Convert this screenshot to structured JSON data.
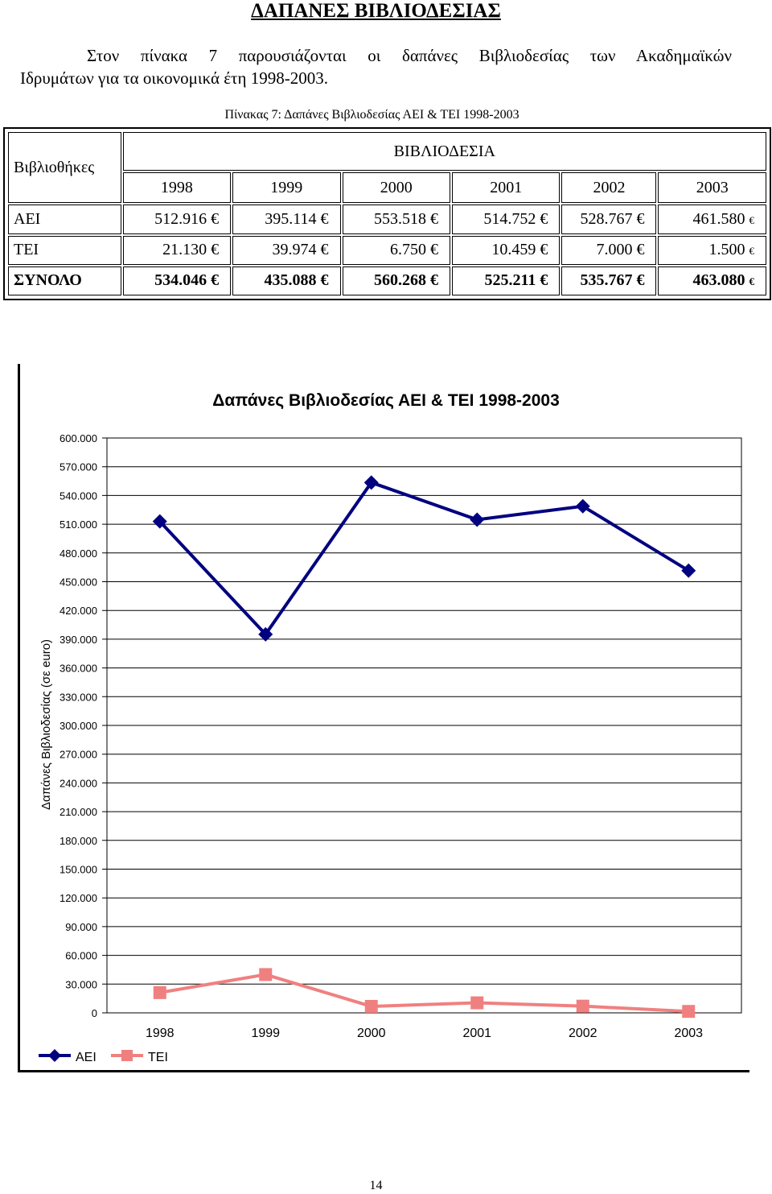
{
  "document": {
    "heading": "ΔΑΠΑΝΕΣ ΒΙΒΛΙΟΔΕΣΙΑΣ",
    "intro_line1": "Στον πίνακα 7 παρουσιάζονται οι δαπάνες Βιβλιοδεσίας των Ακαδημαϊκών",
    "intro_line2": "Ιδρυμάτων για τα οικονομικά έτη 1998-2003.",
    "table_caption": "Πίνακας 7: Δαπάνες Βιβλιοδεσίας ΑΕΙ & ΤΕΙ 1998-2003",
    "page_number": "14"
  },
  "table": {
    "row_header_title": "Βιβλιοθήκες",
    "group_header": "ΒΙΒΛΙΟΔΕΣΙΑ",
    "years": [
      "1998",
      "1999",
      "2000",
      "2001",
      "2002",
      "2003"
    ],
    "currency": "€",
    "rows": [
      {
        "label": "ΑΕΙ",
        "values": [
          "512.916 €",
          "395.114 €",
          "553.518 €",
          "514.752 €",
          "528.767 €",
          "461.580"
        ],
        "bold": false
      },
      {
        "label": "ΤΕΙ",
        "values": [
          "21.130 €",
          "39.974 €",
          "6.750 €",
          "10.459 €",
          "7.000 €",
          "1.500"
        ],
        "bold": false
      },
      {
        "label": "ΣΥΝΟΛΟ",
        "values": [
          "534.046 €",
          "435.088 €",
          "560.268 €",
          "525.211 €",
          "535.767 €",
          "463.080"
        ],
        "bold": true
      }
    ]
  },
  "chart_data": {
    "type": "line",
    "title": "Δαπάνες Βιβλιοδεσίας ΑΕΙ & ΤΕΙ 1998-2003",
    "ylabel": "Δαπάνες Βιβλιοδεσίας (σε euro)",
    "xlabel": "",
    "categories": [
      "1998",
      "1999",
      "2000",
      "2001",
      "2002",
      "2003"
    ],
    "ylim": [
      0,
      600000
    ],
    "y_ticks": [
      "0",
      "30.000",
      "60.000",
      "90.000",
      "120.000",
      "150.000",
      "180.000",
      "210.000",
      "240.000",
      "270.000",
      "300.000",
      "330.000",
      "360.000",
      "390.000",
      "420.000",
      "450.000",
      "480.000",
      "510.000",
      "540.000",
      "570.000",
      "600.000"
    ],
    "grid": "horizontal",
    "legend_position": "bottom-left",
    "series": [
      {
        "name": "ΑΕΙ",
        "color": "#000080",
        "marker": "diamond",
        "values": [
          512916,
          395114,
          553518,
          514752,
          528767,
          461580
        ]
      },
      {
        "name": "ΤΕΙ",
        "color": "#f08080",
        "marker": "square",
        "values": [
          21130,
          39974,
          6750,
          10459,
          7000,
          1500
        ]
      }
    ]
  }
}
